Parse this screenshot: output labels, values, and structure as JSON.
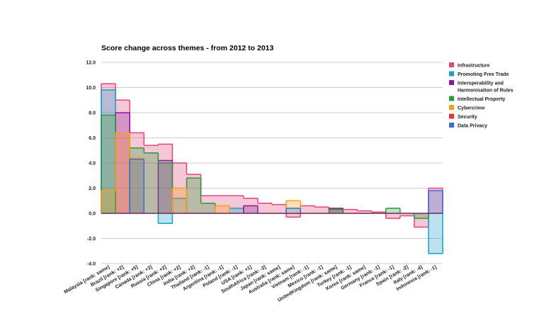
{
  "chart_data": {
    "type": "bar",
    "title": "Score change across themes - from 2012 to 2013",
    "xlabel": "",
    "ylabel": "",
    "ylim": [
      -4.0,
      12.0
    ],
    "yticks": [
      "12.0",
      "10.0",
      "8.0",
      "6.0",
      "4.0",
      "2.0",
      "0.0",
      "-2.0",
      "-4.0"
    ],
    "grid": true,
    "legend_position": "right",
    "categories": [
      "Malaysia [rank: same]",
      "Brazil [rank: +2]",
      "Singapore [rank: +5]",
      "Canada [rank: +3]",
      "Russia [rank: +2]",
      "China [rank: +2]",
      "India [rank: +2]",
      "Thailand [rank: -1]",
      "Argentina [rank: -1]",
      "Poland [rank: -1]",
      "USA [rank: +1]",
      "SouthAfrica [rank: -2]",
      "Japan [rank: same]",
      "Australia [rank: same]",
      "Vietnam [rank: -1]",
      "Mexico [rank: -1]",
      "UnitedKingdom [rank: same]",
      "Turkey [rank: -1]",
      "Korea [rank: same]",
      "Germany [rank: -1]",
      "France [rank: -1]",
      "Spain [rank: -2]",
      "Italy [rank: -4]",
      "Indonesia [rank: -1]"
    ],
    "series": [
      {
        "name": "Infrastructure",
        "color": "#e0457b",
        "values": [
          10.3,
          9.0,
          6.4,
          5.4,
          5.5,
          4.0,
          3.1,
          1.4,
          1.4,
          1.4,
          1.2,
          0.8,
          0.7,
          -0.3,
          0.6,
          0.5,
          0.4,
          0.3,
          0.2,
          0.1,
          -0.4,
          -0.2,
          -1.1,
          2.0
        ]
      },
      {
        "name": "Promoting Free Trade",
        "color": "#1d9ec7",
        "values": [
          9.8,
          0,
          0,
          0,
          -0.8,
          1.2,
          0,
          0,
          0,
          0.4,
          0,
          0,
          0,
          0,
          0,
          0,
          0,
          0,
          0,
          0,
          0,
          0,
          0,
          -3.2
        ]
      },
      {
        "name": "Interoperability and Harmonisation of Rules",
        "color": "#8b1a9b",
        "values": [
          0,
          8.0,
          0,
          0,
          4.2,
          0,
          0,
          0,
          0,
          0,
          0.6,
          0,
          0,
          0,
          0,
          0,
          0.4,
          0,
          0,
          0,
          0,
          0,
          0,
          0
        ]
      },
      {
        "name": "Intellectual Property",
        "color": "#2a9a3a",
        "values": [
          7.8,
          0,
          5.2,
          4.8,
          4.0,
          0,
          2.8,
          0.8,
          0,
          0,
          0,
          0,
          0,
          0,
          0,
          0,
          0.3,
          0,
          0,
          0,
          0.4,
          0,
          -0.4,
          0
        ]
      },
      {
        "name": "Cybercrime",
        "color": "#f5a01a",
        "values": [
          1.8,
          6.4,
          4.4,
          0,
          0,
          2.0,
          0,
          0,
          0.6,
          0,
          0,
          0,
          0,
          1.0,
          0,
          0,
          0,
          0,
          0,
          0,
          0,
          0,
          0,
          0
        ]
      },
      {
        "name": "Security",
        "color": "#e8352b",
        "values": [
          0,
          0,
          0,
          0,
          0,
          0,
          0,
          0,
          0,
          0,
          0,
          0,
          0,
          0,
          0,
          0,
          0,
          0,
          0,
          0,
          0,
          0,
          0,
          0
        ]
      },
      {
        "name": "Data Privacy",
        "color": "#3b6fd1",
        "values": [
          0,
          0,
          4.3,
          0,
          0,
          0,
          0,
          0,
          0,
          0,
          0,
          0,
          0,
          0.4,
          0,
          0,
          0,
          0,
          0,
          0,
          0,
          0,
          0,
          1.8
        ]
      }
    ]
  }
}
